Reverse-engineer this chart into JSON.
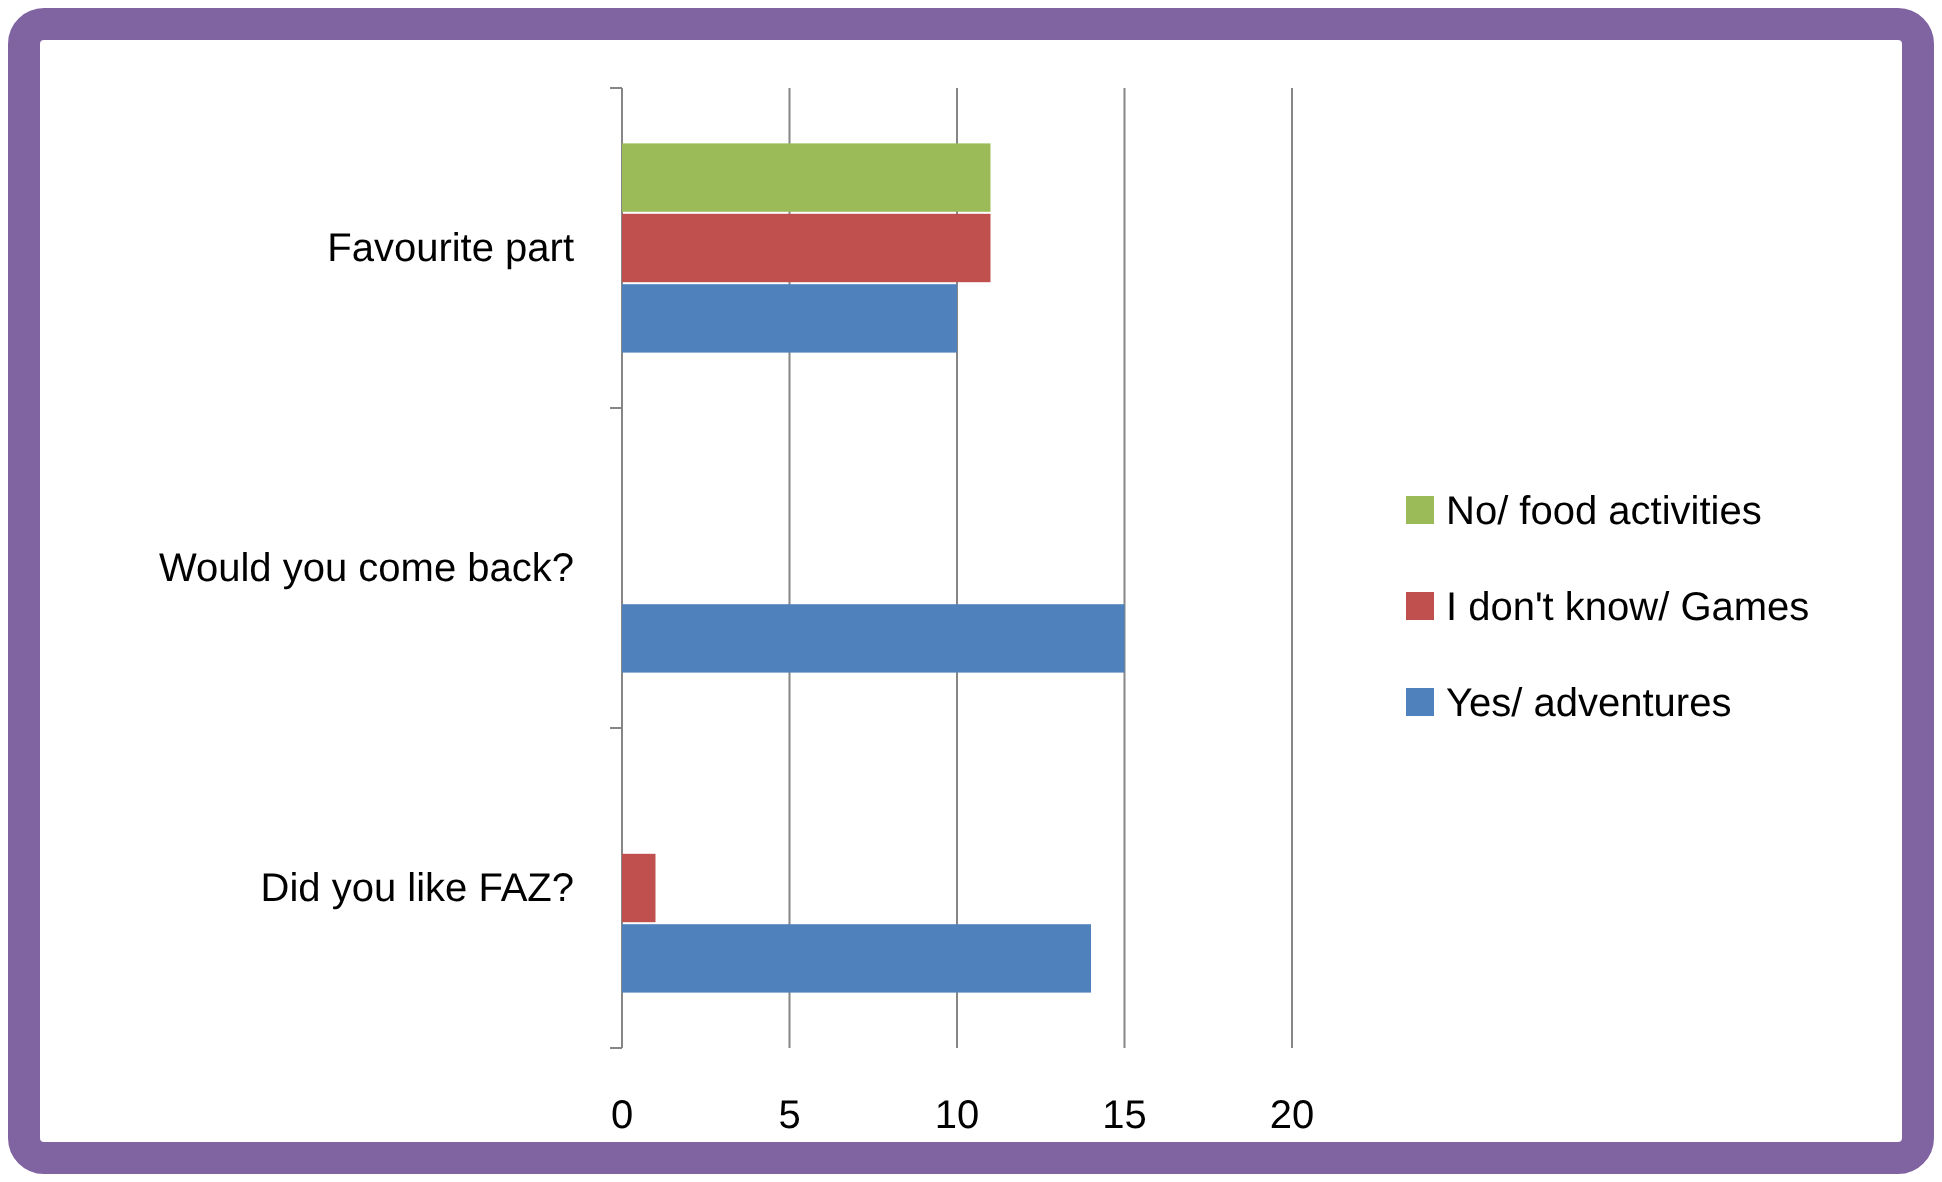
{
  "chart_data": {
    "type": "bar",
    "orientation": "horizontal",
    "categories": [
      "Favourite part",
      "Would you come back?",
      "Did you like FAZ?"
    ],
    "series": [
      {
        "name": "No/ food activities",
        "color": "#9bbb59",
        "values": [
          11,
          null,
          null
        ]
      },
      {
        "name": "I don't know/ Games",
        "color": "#c0504d",
        "values": [
          11,
          null,
          1
        ]
      },
      {
        "name": "Yes/ adventures",
        "color": "#4f81bd",
        "values": [
          10,
          15,
          14
        ]
      }
    ],
    "xlim": [
      0,
      20
    ],
    "xticks": [
      0,
      5,
      10,
      15,
      20
    ],
    "grid": "x",
    "legend": "right"
  }
}
